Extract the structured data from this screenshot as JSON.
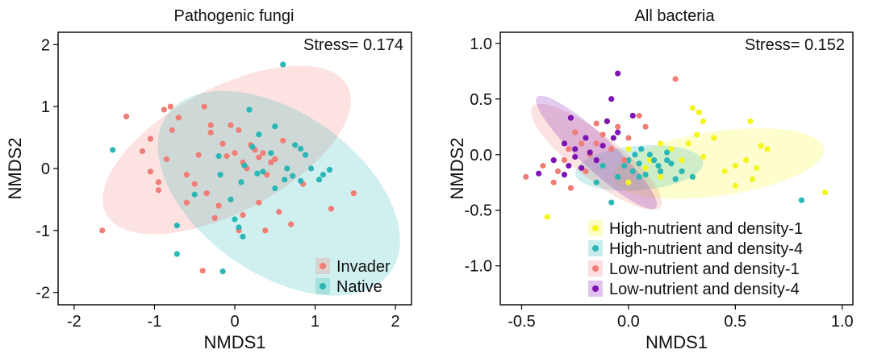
{
  "chart_data": [
    {
      "type": "scatter",
      "title": "Pathogenic fungi",
      "xlabel": "NMDS1",
      "ylabel": "NMDS2",
      "xlim": [
        -2.2,
        2.2
      ],
      "ylim": [
        -2.2,
        2.2
      ],
      "xticks": [
        -2,
        -1,
        0,
        1,
        2
      ],
      "yticks": [
        2,
        1,
        0,
        -1,
        -2
      ],
      "stress": "Stress= 0.174",
      "legend": {
        "position": "bottom-right",
        "entries": [
          "Invader",
          "Native"
        ]
      },
      "series": [
        {
          "name": "Invader",
          "color": "#f07d76",
          "ellipse": {
            "cx": -0.1,
            "cy": 0.3,
            "rx": 1.7,
            "ry": 1.0,
            "angle_deg": -28
          },
          "points": [
            [
              -1.65,
              -1.0
            ],
            [
              -1.35,
              0.84
            ],
            [
              -1.15,
              0.28
            ],
            [
              -1.05,
              -0.05
            ],
            [
              -1.05,
              0.48
            ],
            [
              -0.95,
              -0.22
            ],
            [
              -0.88,
              0.95
            ],
            [
              -0.8,
              1.0
            ],
            [
              -0.78,
              0.62
            ],
            [
              -0.7,
              0.82
            ],
            [
              -0.85,
              0.15
            ],
            [
              -0.6,
              -0.1
            ],
            [
              -0.5,
              -0.25
            ],
            [
              -0.45,
              0.22
            ],
            [
              -0.38,
              1.0
            ],
            [
              -0.35,
              -0.4
            ],
            [
              -0.3,
              0.7
            ],
            [
              -0.3,
              0.58
            ],
            [
              -0.25,
              -0.8
            ],
            [
              -0.2,
              -0.6
            ],
            [
              -0.15,
              0.4
            ],
            [
              -0.1,
              0.2
            ],
            [
              -0.05,
              0.7
            ],
            [
              0.0,
              0.25
            ],
            [
              0.05,
              0.62
            ],
            [
              0.1,
              0.1
            ],
            [
              0.15,
              0.0
            ],
            [
              0.2,
              0.38
            ],
            [
              0.25,
              0.3
            ],
            [
              0.3,
              -0.55
            ],
            [
              0.3,
              0.18
            ],
            [
              0.35,
              0.25
            ],
            [
              0.4,
              -0.1
            ],
            [
              0.45,
              0.1
            ],
            [
              0.5,
              0.15
            ],
            [
              0.55,
              -0.7
            ],
            [
              0.6,
              0.45
            ],
            [
              0.7,
              -0.9
            ],
            [
              1.2,
              -0.65
            ],
            [
              1.48,
              -0.4
            ],
            [
              -0.95,
              -0.35
            ],
            [
              -0.6,
              -0.55
            ],
            [
              0.05,
              -1.0
            ],
            [
              0.38,
              -1.0
            ],
            [
              0.1,
              -0.75
            ],
            [
              -0.4,
              -1.65
            ],
            [
              0.85,
              -0.25
            ]
          ]
        },
        {
          "name": "Native",
          "color": "#2bb7b5",
          "ellipse": {
            "cx": 0.55,
            "cy": -0.4,
            "rx": 1.7,
            "ry": 1.3,
            "angle_deg": 35
          },
          "points": [
            [
              -1.52,
              0.3
            ],
            [
              -0.72,
              -0.92
            ],
            [
              -0.72,
              -1.38
            ],
            [
              -0.5,
              -0.42
            ],
            [
              -0.2,
              0.2
            ],
            [
              -0.18,
              -0.1
            ],
            [
              -0.15,
              -1.66
            ],
            [
              0.0,
              -0.82
            ],
            [
              0.05,
              -0.95
            ],
            [
              0.08,
              -0.22
            ],
            [
              0.1,
              -1.1
            ],
            [
              0.12,
              0.05
            ],
            [
              0.18,
              0.95
            ],
            [
              0.22,
              0.35
            ],
            [
              0.28,
              -0.08
            ],
            [
              0.35,
              -0.05
            ],
            [
              0.45,
              0.25
            ],
            [
              0.5,
              0.68
            ],
            [
              0.6,
              1.68
            ],
            [
              0.62,
              -0.18
            ],
            [
              0.65,
              0.0
            ],
            [
              0.72,
              -0.12
            ],
            [
              0.75,
              0.38
            ],
            [
              0.82,
              0.32
            ],
            [
              0.82,
              -0.2
            ],
            [
              0.88,
              0.22
            ],
            [
              0.95,
              0.0
            ],
            [
              1.05,
              -0.18
            ],
            [
              1.1,
              -0.1
            ],
            [
              1.18,
              -0.02
            ],
            [
              0.5,
              -0.32
            ],
            [
              -0.05,
              -0.5
            ],
            [
              0.3,
              0.55
            ]
          ]
        }
      ]
    },
    {
      "type": "scatter",
      "title": "All bacteria",
      "xlabel": "NMDS1",
      "ylabel": "NMDS2",
      "xlim": [
        -0.6,
        1.05
      ],
      "ylim": [
        -1.35,
        1.1
      ],
      "xticks": [
        -0.5,
        0.0,
        0.5,
        1.0
      ],
      "yticks": [
        1.0,
        0.5,
        0.0,
        -0.5,
        -1.0
      ],
      "xtick_labels": [
        "-0.5",
        "0.0",
        "0.5",
        "1.0"
      ],
      "ytick_labels": [
        "1.0",
        "0.5",
        "0.0",
        "-0.5",
        "-1.0"
      ],
      "stress": "Stress= 0.152",
      "legend": {
        "position": "bottom-right",
        "entries": [
          "High-nutrient and density-1",
          "High-nutrient and density-4",
          "Low-nutrient and density-1",
          "Low-nutrient and density-4"
        ]
      },
      "series": [
        {
          "name": "High-nutrient and density-1",
          "color": "#f5f51e",
          "ellipse": {
            "cx": 0.42,
            "cy": -0.08,
            "rx": 0.5,
            "ry": 0.29,
            "angle_deg": -8
          },
          "points": [
            [
              -0.38,
              -0.56
            ],
            [
              0.0,
              -0.25
            ],
            [
              0.1,
              -0.05
            ],
            [
              0.15,
              -0.2
            ],
            [
              0.2,
              0.05
            ],
            [
              0.25,
              -0.15
            ],
            [
              0.28,
              0.1
            ],
            [
              0.3,
              0.42
            ],
            [
              0.32,
              0.18
            ],
            [
              0.33,
              0.38
            ],
            [
              0.35,
              0.3
            ],
            [
              0.35,
              -0.02
            ],
            [
              0.45,
              -0.15
            ],
            [
              0.5,
              -0.28
            ],
            [
              0.55,
              -0.05
            ],
            [
              0.5,
              -0.1
            ],
            [
              0.57,
              0.3
            ],
            [
              0.58,
              -0.22
            ],
            [
              0.6,
              -0.12
            ],
            [
              0.62,
              0.08
            ],
            [
              0.65,
              0.05
            ],
            [
              0.92,
              -0.34
            ],
            [
              0.0,
              0.05
            ],
            [
              0.08,
              -0.12
            ],
            [
              0.15,
              0.1
            ],
            [
              0.25,
              -0.05
            ],
            [
              0.4,
              0.15
            ]
          ]
        },
        {
          "name": "High-nutrient and density-4",
          "color": "#2bb7b5",
          "ellipse": {
            "cx": 0.05,
            "cy": -0.12,
            "rx": 0.3,
            "ry": 0.2,
            "angle_deg": -5
          },
          "points": [
            [
              -0.08,
              -0.43
            ],
            [
              -0.05,
              -0.2
            ],
            [
              -0.02,
              -0.1
            ],
            [
              0.0,
              -0.05
            ],
            [
              0.02,
              -0.15
            ],
            [
              0.03,
              0.0
            ],
            [
              0.05,
              -0.08
            ],
            [
              0.06,
              0.05
            ],
            [
              0.08,
              -0.18
            ],
            [
              0.1,
              0.0
            ],
            [
              0.12,
              -0.05
            ],
            [
              0.14,
              -0.1
            ],
            [
              0.15,
              -0.15
            ],
            [
              0.18,
              0.02
            ],
            [
              0.2,
              -0.08
            ],
            [
              0.22,
              -0.22
            ],
            [
              0.25,
              -0.15
            ],
            [
              -0.12,
              -0.1
            ],
            [
              -0.15,
              -0.25
            ],
            [
              0.81,
              -0.41
            ],
            [
              0.3,
              -0.2
            ],
            [
              0.05,
              -0.2
            ],
            [
              0.18,
              -0.05
            ]
          ]
        },
        {
          "name": "Low-nutrient and density-1",
          "color": "#f07d76",
          "ellipse": {
            "cx": -0.15,
            "cy": -0.02,
            "rx": 0.38,
            "ry": 0.2,
            "angle_deg": 38
          },
          "points": [
            [
              -0.48,
              -0.2
            ],
            [
              -0.4,
              -0.1
            ],
            [
              -0.33,
              -0.15
            ],
            [
              -0.3,
              -0.05
            ],
            [
              -0.28,
              0.05
            ],
            [
              -0.25,
              0.2
            ],
            [
              -0.22,
              0.1
            ],
            [
              -0.2,
              -0.15
            ],
            [
              -0.18,
              0.0
            ],
            [
              -0.15,
              0.28
            ],
            [
              -0.12,
              0.18
            ],
            [
              -0.1,
              0.3
            ],
            [
              -0.08,
              0.05
            ],
            [
              -0.05,
              0.25
            ],
            [
              -0.02,
              -0.05
            ],
            [
              0.0,
              0.15
            ],
            [
              0.05,
              0.35
            ],
            [
              0.08,
              0.25
            ],
            [
              0.22,
              0.68
            ],
            [
              -0.35,
              -0.25
            ],
            [
              -0.27,
              -0.3
            ],
            [
              -0.15,
              0.1
            ]
          ]
        },
        {
          "name": "Low-nutrient and density-4",
          "color": "#7d14b3",
          "ellipse": {
            "cx": -0.15,
            "cy": 0.02,
            "rx": 0.38,
            "ry": 0.15,
            "angle_deg": 43
          },
          "points": [
            [
              -0.42,
              -0.17
            ],
            [
              -0.35,
              -0.05
            ],
            [
              -0.3,
              -0.18
            ],
            [
              -0.28,
              -0.1
            ],
            [
              -0.25,
              0.05
            ],
            [
              -0.22,
              -0.12
            ],
            [
              -0.2,
              0.15
            ],
            [
              -0.18,
              0.02
            ],
            [
              -0.15,
              -0.05
            ],
            [
              -0.12,
              0.08
            ],
            [
              -0.1,
              0.3
            ],
            [
              -0.08,
              0.5
            ],
            [
              -0.07,
              0.15
            ],
            [
              -0.05,
              0.2
            ],
            [
              -0.05,
              0.73
            ],
            [
              0.02,
              0.35
            ],
            [
              -0.27,
              0.33
            ],
            [
              -0.25,
              -0.02
            ],
            [
              -0.3,
              0.1
            ]
          ]
        }
      ]
    }
  ]
}
